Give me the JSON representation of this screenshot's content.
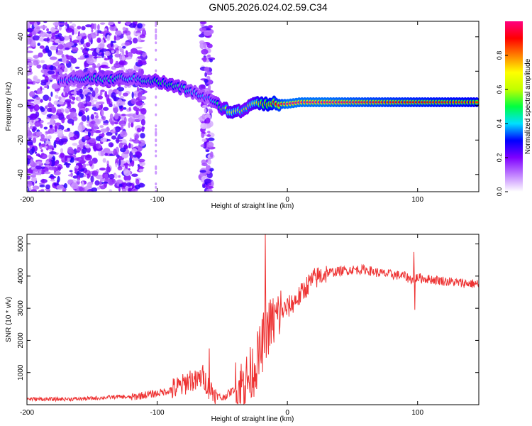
{
  "title": "GN05.2026.024.02.59.C34",
  "chart_data": [
    {
      "type": "heatmap",
      "xlabel": "Height of straight line (km)",
      "ylabel": "Frequency (Hz)",
      "xlim": [
        -200,
        147
      ],
      "ylim": [
        -50,
        49
      ],
      "xticks": [
        -200,
        -100,
        0,
        100
      ],
      "yticks": [
        -40,
        -20,
        0,
        20,
        40
      ],
      "colorbar": {
        "label": "Normalized spectral amplitude",
        "range": [
          0,
          1
        ],
        "ticks": [
          "0.0",
          "0.2",
          "0.4",
          "0.6",
          "0.8"
        ],
        "tick_values": [
          0,
          0.2,
          0.4,
          0.6,
          0.8
        ],
        "colors": [
          "#ffffff",
          "#c080ff",
          "#7f00ff",
          "#0000ff",
          "#00e0ff",
          "#00ff40",
          "#c0ff00",
          "#ffff00",
          "#ff8000",
          "#ff0000",
          "#ff0080"
        ]
      },
      "ridge": {
        "height_km": [
          -180,
          -170,
          -160,
          -150,
          -140,
          -130,
          -120,
          -110,
          -100,
          -90,
          -80,
          -70,
          -60,
          -55,
          -50,
          -45,
          -40,
          -35,
          -30,
          -25,
          -20,
          -15,
          -10,
          -5,
          0,
          10,
          30,
          60,
          100,
          147
        ],
        "frequency_hz": [
          13,
          14,
          16,
          16,
          15,
          16,
          16,
          15,
          14,
          12,
          10,
          7,
          4,
          1,
          -1,
          -3,
          -4,
          -3,
          0,
          2,
          2,
          1,
          1,
          1,
          1,
          2,
          2,
          2,
          2,
          2
        ],
        "amplitude": [
          0.3,
          0.35,
          0.4,
          0.45,
          0.45,
          0.45,
          0.4,
          0.45,
          0.5,
          0.5,
          0.45,
          0.4,
          0.35,
          0.45,
          0.55,
          0.65,
          0.7,
          0.6,
          0.6,
          0.7,
          0.8,
          0.85,
          0.9,
          0.95,
          1.0,
          1.0,
          1.0,
          0.95,
          0.9,
          0.85
        ]
      }
    },
    {
      "type": "line",
      "xlabel": "Height of straight line (km)",
      "ylabel": "SNR (10 * v/v)",
      "xlim": [
        -200,
        147
      ],
      "ylim": [
        0,
        5300
      ],
      "xticks": [
        -200,
        -100,
        0,
        100
      ],
      "yticks": [
        1000,
        2000,
        3000,
        4000,
        5000
      ],
      "color": "#ee3333",
      "series": [
        {
          "name": "SNR",
          "x": [
            -200,
            -180,
            -160,
            -140,
            -130,
            -120,
            -110,
            -100,
            -90,
            -80,
            -75,
            -70,
            -65,
            -60,
            -55,
            -50,
            -45,
            -40,
            -35,
            -30,
            -25,
            -20,
            -18,
            -15,
            -10,
            -5,
            0,
            5,
            10,
            15,
            20,
            25,
            30,
            40,
            50,
            60,
            70,
            80,
            90,
            95,
            100,
            110,
            120,
            130,
            147
          ],
          "y": [
            180,
            170,
            180,
            220,
            250,
            230,
            300,
            350,
            450,
            600,
            800,
            700,
            900,
            500,
            300,
            200,
            350,
            500,
            600,
            800,
            1200,
            1700,
            2100,
            2400,
            2600,
            2900,
            3000,
            3200,
            3400,
            3700,
            3900,
            4000,
            4100,
            4150,
            4200,
            4200,
            4100,
            4050,
            4000,
            3900,
            3950,
            3900,
            3850,
            3800,
            3750
          ],
          "spikes": [
            {
              "x": -60,
              "y": 1750
            },
            {
              "x": -17,
              "y": 5300
            },
            {
              "x": 97,
              "y": 4750
            },
            {
              "x": 98,
              "y": 2950
            }
          ]
        }
      ]
    }
  ]
}
